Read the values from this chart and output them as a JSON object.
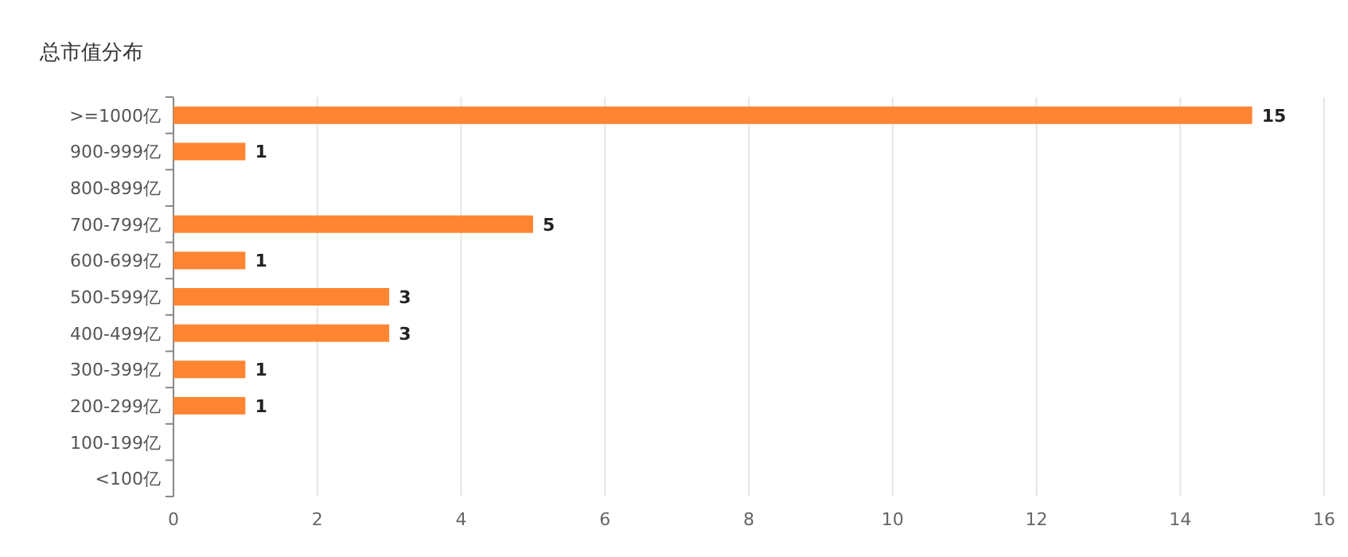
{
  "chart_data": {
    "type": "bar",
    "orientation": "horizontal",
    "title": "总市值分布",
    "categories": [
      ">=1000亿",
      "900-999亿",
      "800-899亿",
      "700-799亿",
      "600-699亿",
      "500-599亿",
      "400-499亿",
      "300-399亿",
      "200-299亿",
      "100-199亿",
      "<100亿"
    ],
    "values": [
      15,
      1,
      0,
      5,
      1,
      3,
      3,
      1,
      1,
      0,
      0
    ],
    "value_labels": [
      "15",
      "1",
      null,
      "5",
      "1",
      "3",
      "3",
      "1",
      "1",
      null,
      null
    ],
    "color": "#ff8533",
    "xlim": [
      0,
      16
    ],
    "xticks": [
      0,
      2,
      4,
      6,
      8,
      10,
      12,
      14,
      16
    ],
    "grid": "x"
  }
}
